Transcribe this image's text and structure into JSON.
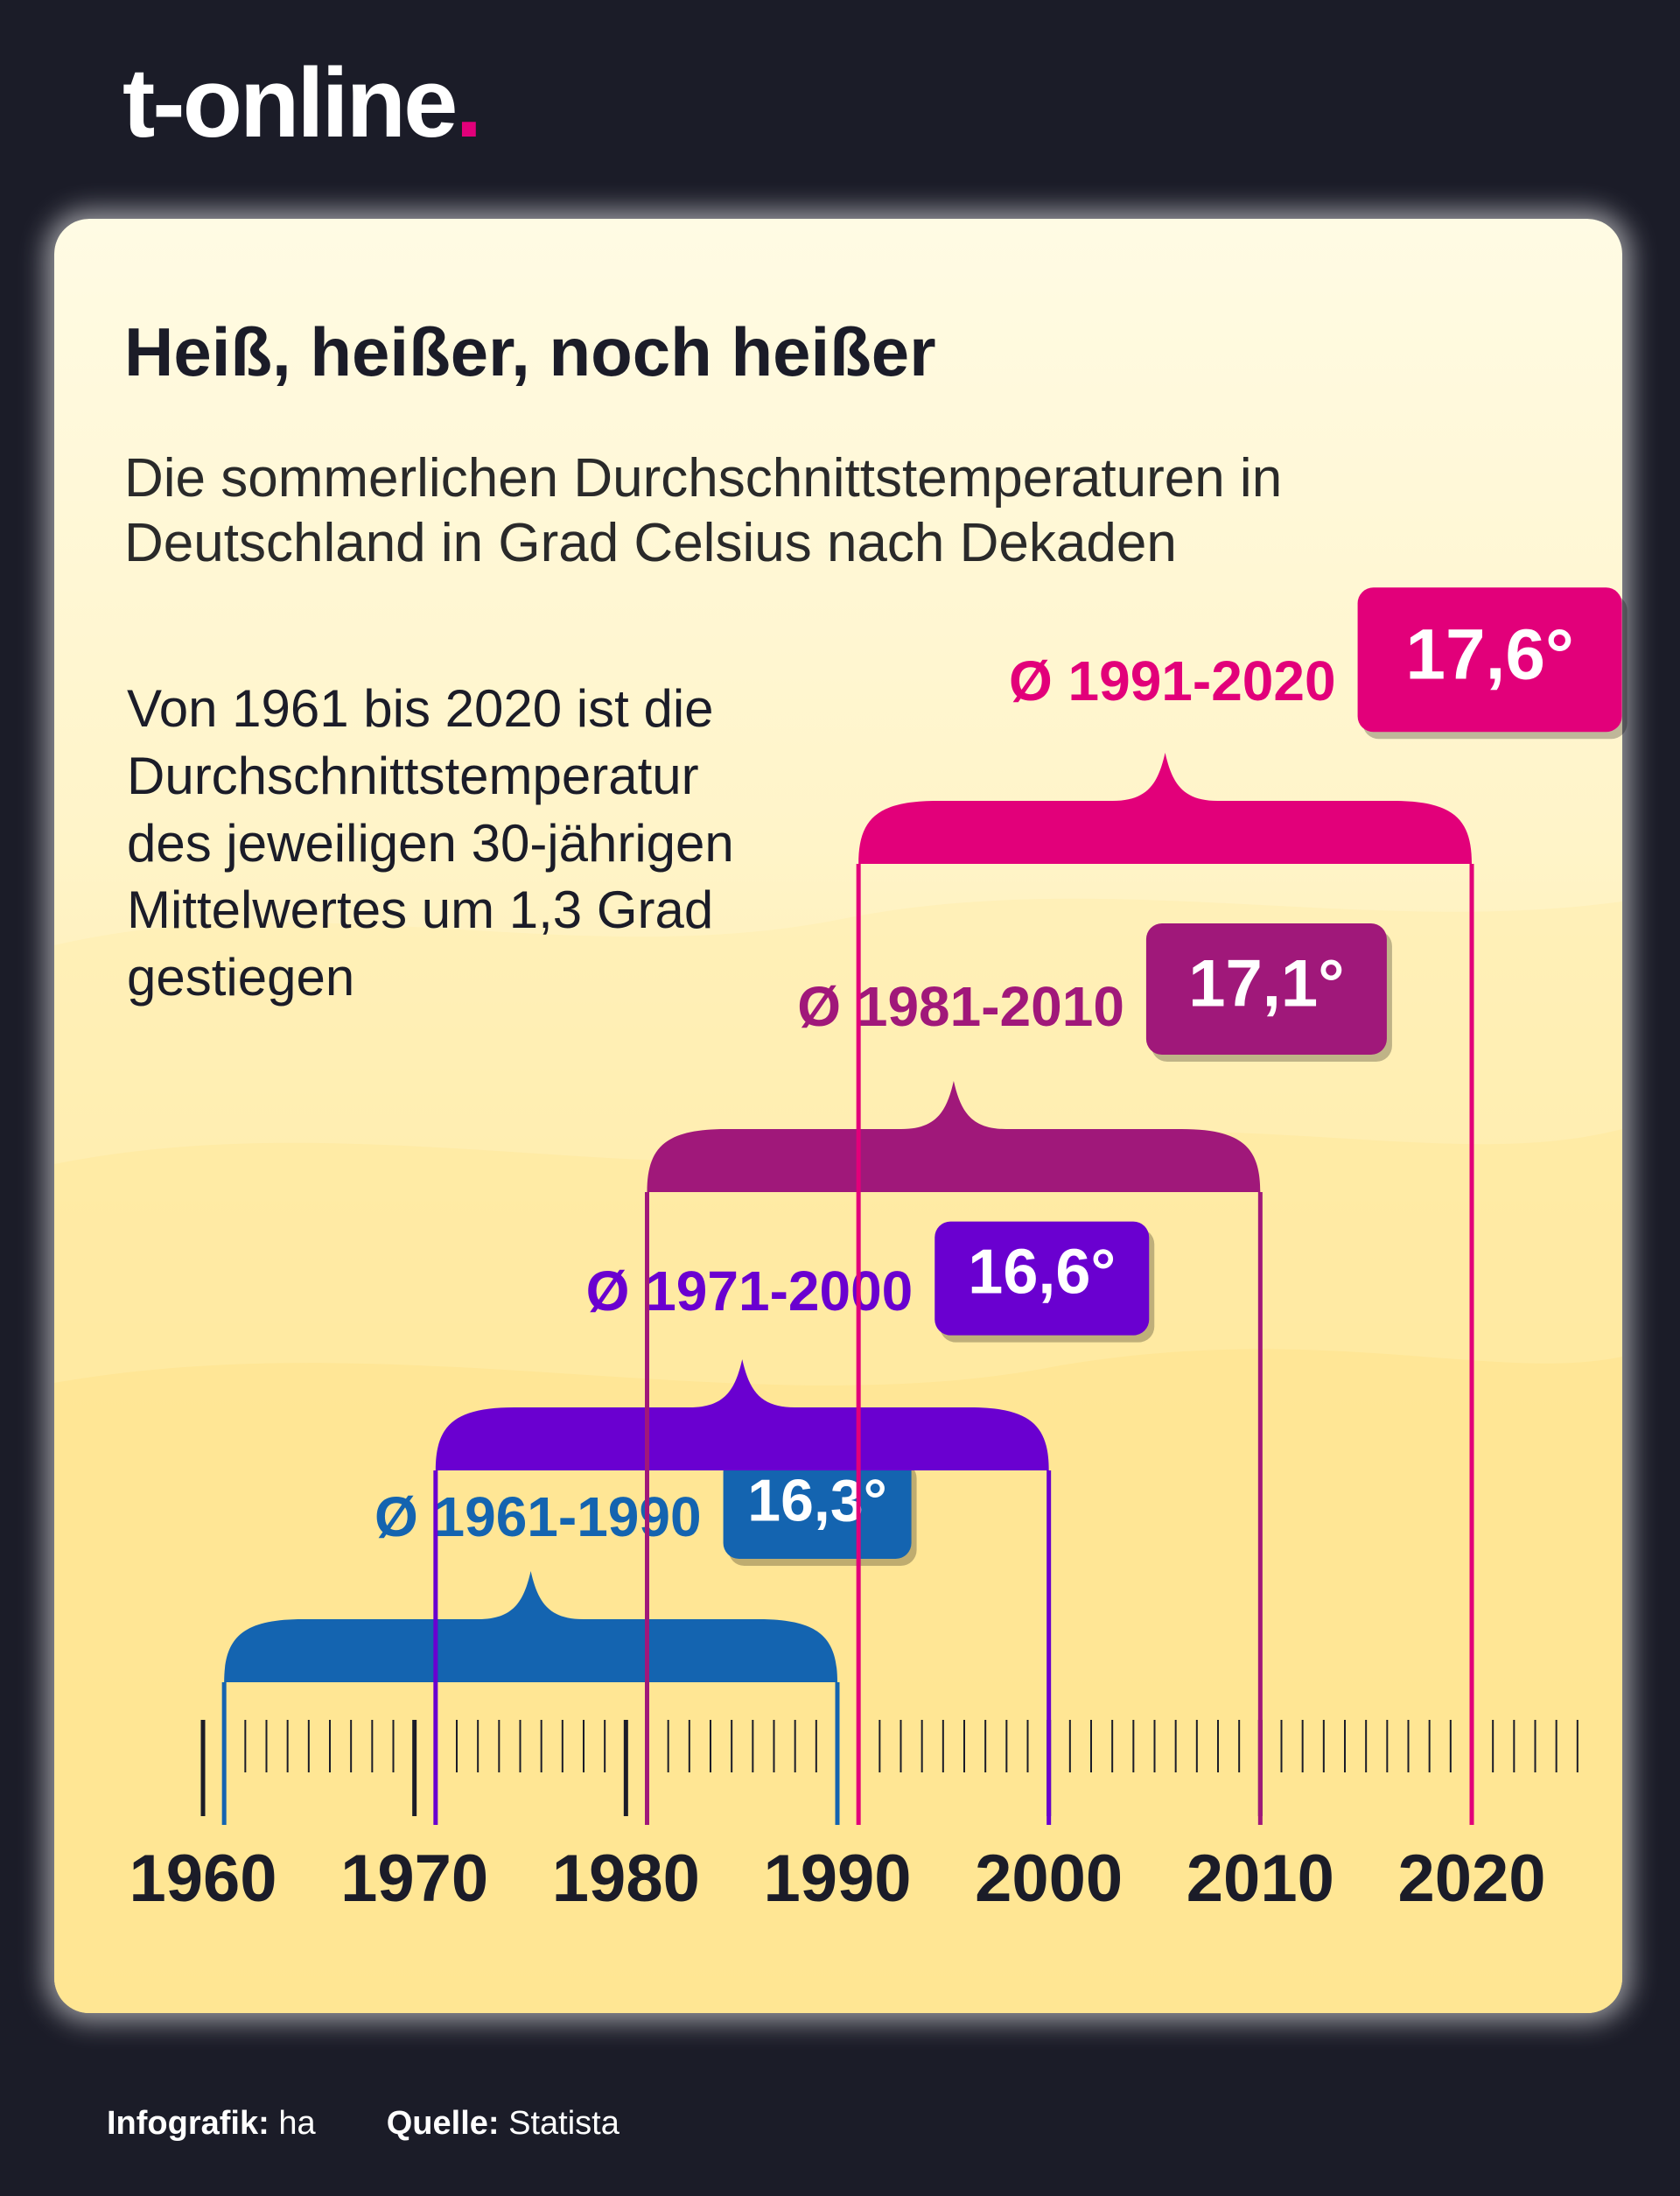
{
  "brand": {
    "name": "t-online",
    "dot": "."
  },
  "header": {
    "title": "Heiß, heißer, noch heißer",
    "subtitle": "Die sommerlichen Durchschnittstemperaturen in Deutschland in Grad Celsius nach Dekaden"
  },
  "note": "Von 1961 bis 2020 ist die Durchschnittstemperatur des jeweiligen 30-jährigen Mittelwertes um 1,3 Grad gestiegen",
  "footer": {
    "infografik_label": "Infografik:",
    "infografik_value": "ha",
    "source_label": "Quelle:",
    "source_value": "Statista"
  },
  "chart_data": {
    "type": "timeline",
    "title": "Heiß, heißer, noch heißer",
    "xlabel": "",
    "ylabel": "",
    "xlim": [
      1960,
      2020
    ],
    "ticks": [
      "1960",
      "1970",
      "1980",
      "1990",
      "2000",
      "2010",
      "2020"
    ],
    "tick_values": [
      1960,
      1970,
      1980,
      1990,
      2000,
      2010,
      2020
    ],
    "unit": "°C",
    "series": [
      {
        "name": "Ø 1961-1990",
        "start": 1961,
        "end": 1990,
        "value": 16.3,
        "value_label": "16,3°",
        "color": "#1464b0"
      },
      {
        "name": "Ø 1971-2000",
        "start": 1971,
        "end": 2000,
        "value": 16.6,
        "value_label": "16,6°",
        "color": "#6a00d0"
      },
      {
        "name": "Ø 1981-2010",
        "start": 1981,
        "end": 2010,
        "value": 17.1,
        "value_label": "17,1°",
        "color": "#a0187a"
      },
      {
        "name": "Ø 1991-2020",
        "start": 1991,
        "end": 2020,
        "value": 17.6,
        "value_label": "17,6°",
        "color": "#e2007a"
      }
    ],
    "axis_color": "#1b1c28"
  }
}
